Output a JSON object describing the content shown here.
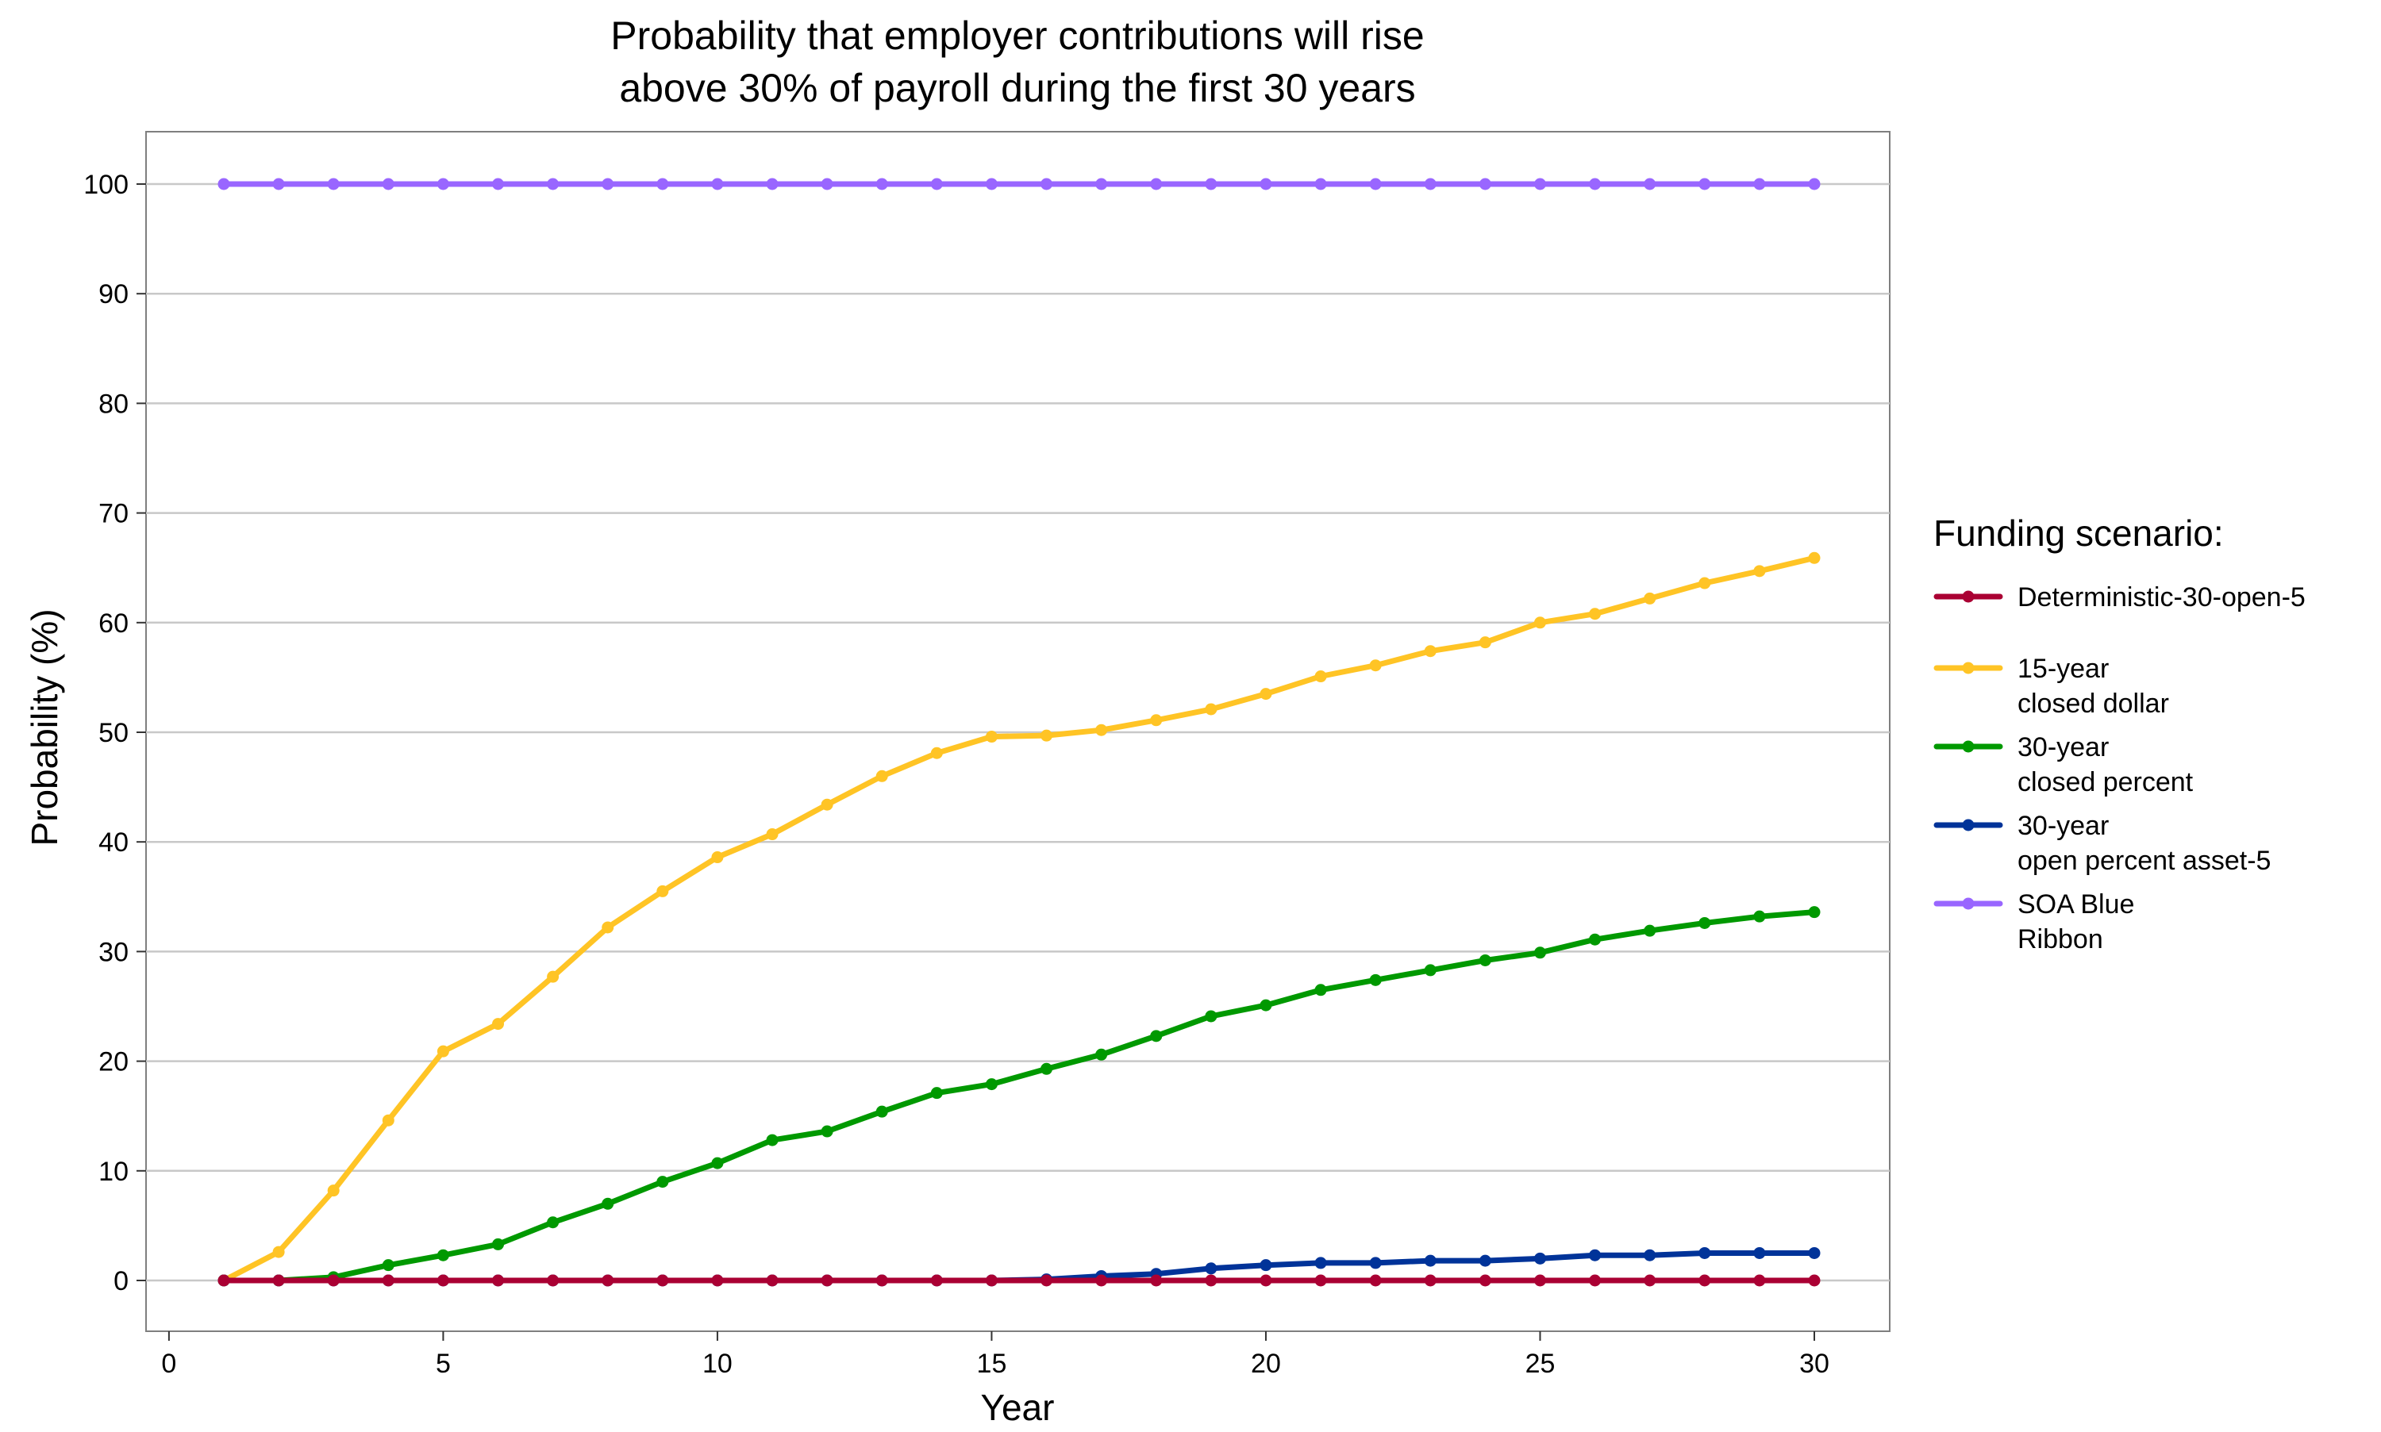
{
  "chart_data": {
    "type": "line",
    "title": "Probability that employer contributions will rise above 30% of payroll during the first 30 years",
    "title_lines": [
      "Probability that employer contributions will rise",
      "above 30% of payroll during the first 30 years"
    ],
    "xlabel": "Year",
    "ylabel": "Probability (%)",
    "xlim": [
      0,
      30
    ],
    "ylim": [
      0,
      100
    ],
    "x_ticks": [
      0,
      5,
      10,
      15,
      20,
      25,
      30
    ],
    "y_ticks": [
      0,
      10,
      20,
      30,
      40,
      50,
      60,
      70,
      80,
      90,
      100
    ],
    "grid": "horizontal major",
    "legend_title": "Funding scenario:",
    "legend_position": "right",
    "x": [
      1,
      2,
      3,
      4,
      5,
      6,
      7,
      8,
      9,
      10,
      11,
      12,
      13,
      14,
      15,
      16,
      17,
      18,
      19,
      20,
      21,
      22,
      23,
      24,
      25,
      26,
      27,
      28,
      29,
      30
    ],
    "series": [
      {
        "name": "SOA Blue Ribbon",
        "legend_lines": [
          "SOA Blue",
          "Ribbon"
        ],
        "color": "#9966ff",
        "values": [
          100,
          100,
          100,
          100,
          100,
          100,
          100,
          100,
          100,
          100,
          100,
          100,
          100,
          100,
          100,
          100,
          100,
          100,
          100,
          100,
          100,
          100,
          100,
          100,
          100,
          100,
          100,
          100,
          100,
          100
        ]
      },
      {
        "name": "15-year closed dollar",
        "legend_lines": [
          "15-year",
          "closed dollar"
        ],
        "color": "#ffc425",
        "values": [
          0,
          2.6,
          8.2,
          14.6,
          20.9,
          23.4,
          27.7,
          32.2,
          35.5,
          38.6,
          40.7,
          43.4,
          46.0,
          48.1,
          49.6,
          49.7,
          50.2,
          51.1,
          52.1,
          53.5,
          55.1,
          56.1,
          57.4,
          58.2,
          60.0,
          60.8,
          62.2,
          63.6,
          64.7,
          65.9
        ]
      },
      {
        "name": "30-year closed percent",
        "legend_lines": [
          "30-year",
          "closed percent"
        ],
        "color": "#009900",
        "values": [
          0,
          0,
          0.3,
          1.4,
          2.3,
          3.3,
          5.3,
          7.0,
          9.0,
          10.7,
          12.8,
          13.6,
          15.4,
          17.1,
          17.9,
          19.3,
          20.6,
          22.3,
          24.1,
          25.1,
          26.5,
          27.4,
          28.3,
          29.2,
          29.9,
          31.1,
          31.9,
          32.6,
          33.2,
          33.6
        ]
      },
      {
        "name": "30-year open percent asset-5",
        "legend_lines": [
          "30-year",
          "open percent asset-5"
        ],
        "color": "#003399",
        "values": [
          0,
          0,
          0,
          0,
          0,
          0,
          0,
          0,
          0,
          0,
          0,
          0,
          0,
          0,
          0,
          0.1,
          0.4,
          0.6,
          1.1,
          1.4,
          1.6,
          1.6,
          1.8,
          1.8,
          2.0,
          2.3,
          2.3,
          2.5,
          2.5,
          2.5
        ]
      },
      {
        "name": "Deterministic-30-open-5",
        "legend_lines": [
          "Deterministic-30-open-5"
        ],
        "color": "#aa0033",
        "values": [
          0,
          0,
          0,
          0,
          0,
          0,
          0,
          0,
          0,
          0,
          0,
          0,
          0,
          0,
          0,
          0,
          0,
          0,
          0,
          0,
          0,
          0,
          0,
          0,
          0,
          0,
          0,
          0,
          0,
          0
        ]
      }
    ],
    "legend_order": [
      "Deterministic-30-open-5",
      "15-year closed dollar",
      "30-year closed percent",
      "30-year open percent asset-5",
      "SOA Blue Ribbon"
    ]
  }
}
